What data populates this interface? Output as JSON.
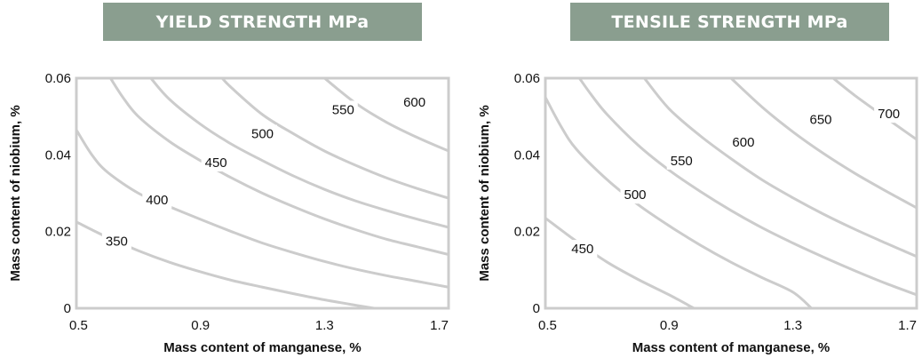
{
  "chart_data": [
    {
      "type": "contour",
      "title": "YIELD STRENGTH MPa",
      "xlabel": "Mass content of manganese, %",
      "ylabel": "Mass content of niobium, %",
      "xlim": [
        0.5,
        1.7
      ],
      "ylim": [
        0,
        0.06
      ],
      "xticks": [
        "0.5",
        "0.9",
        "1.3",
        "1.7"
      ],
      "yticks": [
        "0",
        "0.02",
        "0.04",
        "0.06"
      ],
      "grid": false,
      "contours": [
        {
          "level": "350",
          "points": [
            [
              0.5,
              0.0225
            ],
            [
              0.6,
              0.0185
            ],
            [
              0.7,
              0.015
            ],
            [
              0.8,
              0.012
            ],
            [
              0.9,
              0.0095
            ],
            [
              1.0,
              0.0073
            ],
            [
              1.1,
              0.0055
            ],
            [
              1.2,
              0.0038
            ],
            [
              1.3,
              0.0022
            ],
            [
              1.4,
              0.0008
            ],
            [
              1.46,
              0.0
            ]
          ],
          "label": {
            "x": 0.63,
            "y": 0.0175
          }
        },
        {
          "level": "400",
          "points": [
            [
              0.5,
              0.0465
            ],
            [
              0.55,
              0.04
            ],
            [
              0.6,
              0.0355
            ],
            [
              0.7,
              0.03
            ],
            [
              0.8,
              0.0265
            ],
            [
              0.9,
              0.0232
            ],
            [
              1.0,
              0.02
            ],
            [
              1.1,
              0.017
            ],
            [
              1.2,
              0.0145
            ],
            [
              1.3,
              0.0122
            ],
            [
              1.4,
              0.0102
            ],
            [
              1.5,
              0.0085
            ],
            [
              1.6,
              0.007
            ],
            [
              1.7,
              0.0055
            ]
          ],
          "label": {
            "x": 0.76,
            "y": 0.0283
          }
        },
        {
          "level": "450",
          "points": [
            [
              0.61,
              0.06
            ],
            [
              0.65,
              0.055
            ],
            [
              0.7,
              0.05
            ],
            [
              0.8,
              0.0435
            ],
            [
              0.9,
              0.0385
            ],
            [
              1.0,
              0.034
            ],
            [
              1.1,
              0.03
            ],
            [
              1.2,
              0.0265
            ],
            [
              1.3,
              0.0233
            ],
            [
              1.4,
              0.0205
            ],
            [
              1.5,
              0.018
            ],
            [
              1.6,
              0.016
            ],
            [
              1.7,
              0.014
            ]
          ],
          "label": {
            "x": 0.95,
            "y": 0.038
          }
        },
        {
          "level": "500",
          "points": [
            [
              0.74,
              0.06
            ],
            [
              0.8,
              0.0545
            ],
            [
              0.9,
              0.048
            ],
            [
              1.0,
              0.0428
            ],
            [
              1.1,
              0.0385
            ],
            [
              1.2,
              0.0345
            ],
            [
              1.3,
              0.031
            ],
            [
              1.4,
              0.028
            ],
            [
              1.5,
              0.0255
            ],
            [
              1.6,
              0.0232
            ],
            [
              1.7,
              0.0211
            ]
          ],
          "label": {
            "x": 1.1,
            "y": 0.0455
          }
        },
        {
          "level": "550",
          "points": [
            [
              0.97,
              0.06
            ],
            [
              1.0,
              0.0575
            ],
            [
              1.1,
              0.0505
            ],
            [
              1.2,
              0.0455
            ],
            [
              1.3,
              0.041
            ],
            [
              1.4,
              0.0373
            ],
            [
              1.5,
              0.034
            ],
            [
              1.6,
              0.0312
            ],
            [
              1.7,
              0.0287
            ]
          ],
          "label": {
            "x": 1.36,
            "y": 0.0518
          }
        },
        {
          "level": "600",
          "points": [
            [
              1.3,
              0.06
            ],
            [
              1.4,
              0.0535
            ],
            [
              1.5,
              0.0485
            ],
            [
              1.6,
              0.0445
            ],
            [
              1.7,
              0.041
            ]
          ],
          "label": {
            "x": 1.59,
            "y": 0.0537
          }
        }
      ]
    },
    {
      "type": "contour",
      "title": "TENSILE STRENGTH MPa",
      "xlabel": "Mass content of manganese, %",
      "ylabel": "Mass content of niobium, %",
      "xlim": [
        0.5,
        1.7
      ],
      "ylim": [
        0,
        0.06
      ],
      "xticks": [
        "0.5",
        "0.9",
        "1.3",
        "1.7"
      ],
      "yticks": [
        "0",
        "0.02",
        "0.04",
        "0.06"
      ],
      "grid": false,
      "contours": [
        {
          "level": "450",
          "points": [
            [
              0.5,
              0.0235
            ],
            [
              0.6,
              0.0175
            ],
            [
              0.7,
              0.012
            ],
            [
              0.8,
              0.0075
            ],
            [
              0.9,
              0.0035
            ],
            [
              0.98,
              0.0
            ]
          ],
          "label": {
            "x": 0.62,
            "y": 0.0155
          }
        },
        {
          "level": "500",
          "points": [
            [
              0.5,
              0.055
            ],
            [
              0.55,
              0.0475
            ],
            [
              0.6,
              0.0415
            ],
            [
              0.7,
              0.0335
            ],
            [
              0.8,
              0.027
            ],
            [
              0.9,
              0.0215
            ],
            [
              1.0,
              0.0165
            ],
            [
              1.1,
              0.012
            ],
            [
              1.2,
              0.008
            ],
            [
              1.3,
              0.0042
            ],
            [
              1.36,
              0.0
            ]
          ],
          "label": {
            "x": 0.79,
            "y": 0.0296
          }
        },
        {
          "level": "550",
          "points": [
            [
              0.61,
              0.06
            ],
            [
              0.65,
              0.0555
            ],
            [
              0.7,
              0.0505
            ],
            [
              0.8,
              0.0425
            ],
            [
              0.9,
              0.036
            ],
            [
              1.0,
              0.0305
            ],
            [
              1.1,
              0.0255
            ],
            [
              1.2,
              0.021
            ],
            [
              1.3,
              0.017
            ],
            [
              1.4,
              0.0133
            ],
            [
              1.5,
              0.0098
            ],
            [
              1.6,
              0.0065
            ],
            [
              1.7,
              0.0035
            ]
          ],
          "label": {
            "x": 0.94,
            "y": 0.0385
          }
        },
        {
          "level": "600",
          "points": [
            [
              0.82,
              0.06
            ],
            [
              0.9,
              0.052
            ],
            [
              1.0,
              0.045
            ],
            [
              1.1,
              0.039
            ],
            [
              1.2,
              0.0335
            ],
            [
              1.3,
              0.0288
            ],
            [
              1.4,
              0.0245
            ],
            [
              1.5,
              0.0206
            ],
            [
              1.6,
              0.017
            ],
            [
              1.7,
              0.0135
            ]
          ],
          "label": {
            "x": 1.14,
            "y": 0.0433
          }
        },
        {
          "level": "650",
          "points": [
            [
              1.1,
              0.06
            ],
            [
              1.2,
              0.0525
            ],
            [
              1.3,
              0.046
            ],
            [
              1.4,
              0.0403
            ],
            [
              1.5,
              0.0352
            ],
            [
              1.6,
              0.0306
            ],
            [
              1.7,
              0.0262
            ]
          ],
          "label": {
            "x": 1.39,
            "y": 0.0492
          }
        },
        {
          "level": "700",
          "points": [
            [
              1.43,
              0.06
            ],
            [
              1.5,
              0.0555
            ],
            [
              1.6,
              0.0497
            ],
            [
              1.7,
              0.044
            ]
          ],
          "label": {
            "x": 1.61,
            "y": 0.0507
          }
        }
      ]
    }
  ],
  "style": {
    "curve_color": "#cccccc",
    "frame_color": "#cccccc",
    "banner_color": "#8a9e8f"
  }
}
